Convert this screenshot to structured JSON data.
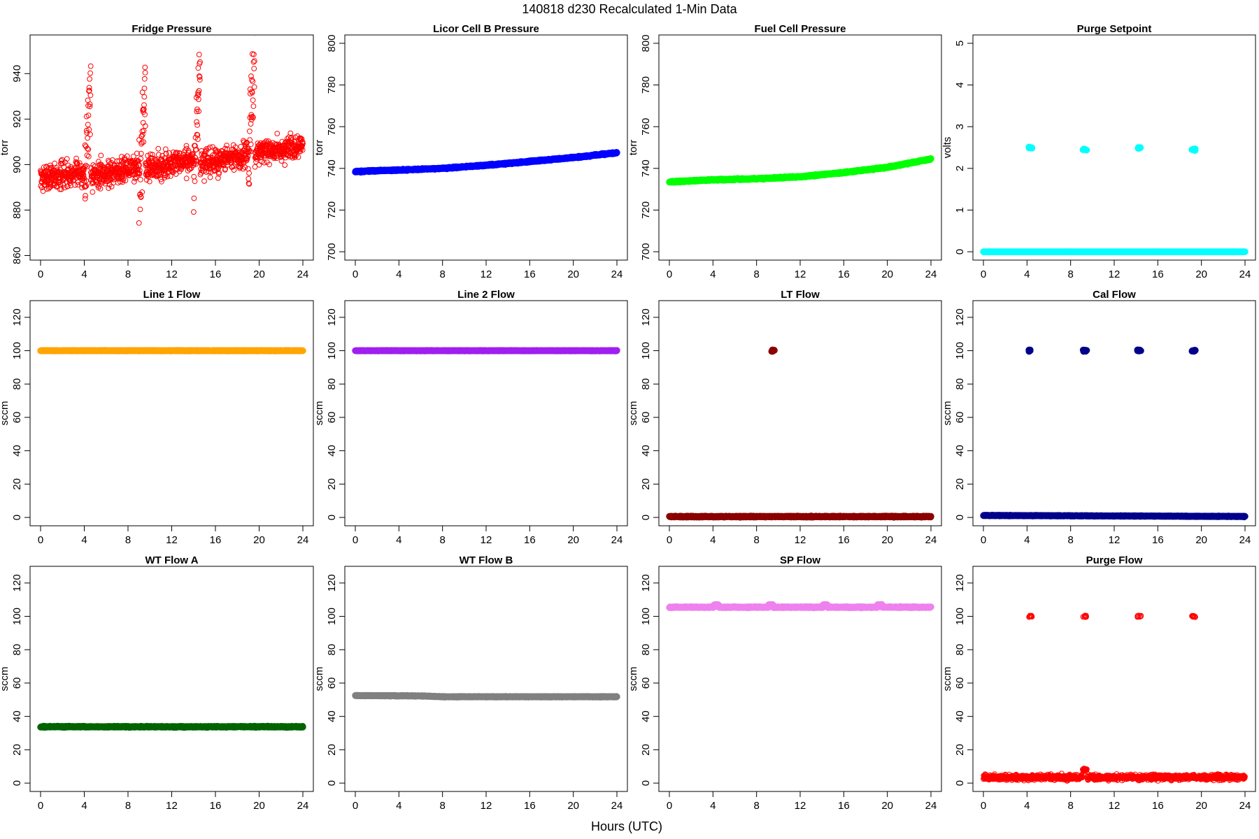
{
  "figure": {
    "title": "140818   d230   Recalculated 1-Min Data",
    "xlabel": "Hours (UTC)"
  },
  "chart_data": [
    {
      "type": "scatter",
      "title": "Fridge Pressure",
      "ylabel": "torr",
      "color": "#ff0000",
      "marker": "open",
      "xlim": [
        0,
        24
      ],
      "xticks": [
        0,
        4,
        8,
        12,
        16,
        20,
        24
      ],
      "ylim": [
        858,
        957
      ],
      "yticks": [
        860,
        880,
        900,
        920,
        940
      ],
      "segments": [
        {
          "x0": 0,
          "x1": 4.0,
          "y0": 894,
          "y1": 897,
          "noise": 7
        },
        {
          "x0": 4.0,
          "x1": 4.6,
          "y0": 885,
          "y1": 945,
          "noise": 28
        },
        {
          "x0": 4.6,
          "x1": 9.0,
          "y0": 895,
          "y1": 899,
          "noise": 7
        },
        {
          "x0": 9.0,
          "x1": 9.6,
          "y0": 880,
          "y1": 945,
          "noise": 28
        },
        {
          "x0": 9.6,
          "x1": 14.0,
          "y0": 898,
          "y1": 902,
          "noise": 7
        },
        {
          "x0": 14.0,
          "x1": 14.6,
          "y0": 890,
          "y1": 945,
          "noise": 22
        },
        {
          "x0": 14.6,
          "x1": 19.0,
          "y0": 900,
          "y1": 904,
          "noise": 7
        },
        {
          "x0": 19.0,
          "x1": 19.6,
          "y0": 895,
          "y1": 950,
          "noise": 24
        },
        {
          "x0": 19.6,
          "x1": 24.0,
          "y0": 905,
          "y1": 908,
          "noise": 6
        }
      ],
      "n": 1440,
      "seed": 7
    },
    {
      "type": "scatter",
      "title": "Licor Cell B Pressure",
      "ylabel": "torr",
      "color": "#0000ff",
      "marker": "filled",
      "xlim": [
        0,
        24
      ],
      "xticks": [
        0,
        4,
        8,
        12,
        16,
        20,
        24
      ],
      "ylim": [
        696,
        804
      ],
      "yticks": [
        700,
        720,
        740,
        760,
        780,
        800
      ],
      "x": [
        0,
        4,
        8,
        12,
        16,
        20,
        24
      ],
      "y": [
        738.5,
        739.2,
        740.0,
        741.5,
        743.3,
        745.2,
        747.5
      ],
      "noise": 0.3,
      "n": 1440,
      "seed": 11
    },
    {
      "type": "scatter",
      "title": "Fuel Cell Pressure",
      "ylabel": "torr",
      "color": "#00ff00",
      "marker": "filled",
      "xlim": [
        0,
        24
      ],
      "xticks": [
        0,
        4,
        8,
        12,
        16,
        20,
        24
      ],
      "ylim": [
        696,
        804
      ],
      "yticks": [
        700,
        720,
        740,
        760,
        780,
        800
      ],
      "x": [
        0,
        4,
        8,
        12,
        16,
        20,
        24
      ],
      "y": [
        733.5,
        734.5,
        735.0,
        736.0,
        738.0,
        740.5,
        744.5
      ],
      "noise": 0.3,
      "n": 1440,
      "seed": 13
    },
    {
      "type": "scatter",
      "title": "Purge Setpoint",
      "ylabel": "volts",
      "color": "#00ffff",
      "marker": "filled",
      "xlim": [
        0,
        24
      ],
      "xticks": [
        0,
        4,
        8,
        12,
        16,
        20,
        24
      ],
      "ylim": [
        -0.2,
        5.2
      ],
      "yticks": [
        0,
        1,
        2,
        3,
        4,
        5
      ],
      "x": [
        0,
        24
      ],
      "y": [
        0,
        0
      ],
      "noise": 0.0,
      "n": 1440,
      "seed": 17,
      "clusters": [
        {
          "x": 4.3,
          "y": 2.5
        },
        {
          "x": 9.3,
          "y": 2.45
        },
        {
          "x": 14.3,
          "y": 2.5
        },
        {
          "x": 19.3,
          "y": 2.45
        }
      ]
    },
    {
      "type": "scatter",
      "title": "Line 1 Flow",
      "ylabel": "sccm",
      "color": "#ffa500",
      "marker": "filled",
      "xlim": [
        0,
        24
      ],
      "xticks": [
        0,
        4,
        8,
        12,
        16,
        20,
        24
      ],
      "ylim": [
        -5,
        130
      ],
      "yticks": [
        0,
        20,
        40,
        60,
        80,
        100,
        120
      ],
      "x": [
        0,
        24
      ],
      "y": [
        100,
        100
      ],
      "noise": 0.15,
      "n": 1440,
      "seed": 19
    },
    {
      "type": "scatter",
      "title": "Line 2 Flow",
      "ylabel": "sccm",
      "color": "#a020f0",
      "marker": "filled",
      "xlim": [
        0,
        24
      ],
      "xticks": [
        0,
        4,
        8,
        12,
        16,
        20,
        24
      ],
      "ylim": [
        -5,
        130
      ],
      "yticks": [
        0,
        20,
        40,
        60,
        80,
        100,
        120
      ],
      "x": [
        0,
        24
      ],
      "y": [
        100,
        100
      ],
      "noise": 0.15,
      "n": 1440,
      "seed": 23
    },
    {
      "type": "scatter",
      "title": "LT Flow",
      "ylabel": "sccm",
      "color": "#8b0000",
      "marker": "filled",
      "xlim": [
        0,
        24
      ],
      "xticks": [
        0,
        4,
        8,
        12,
        16,
        20,
        24
      ],
      "ylim": [
        -5,
        130
      ],
      "yticks": [
        0,
        20,
        40,
        60,
        80,
        100,
        120
      ],
      "x": [
        0,
        24
      ],
      "y": [
        0.5,
        0.5
      ],
      "noise": 0.3,
      "n": 1440,
      "seed": 29,
      "clusters": [
        {
          "x": 9.5,
          "y": 100
        }
      ]
    },
    {
      "type": "scatter",
      "title": "Cal Flow",
      "ylabel": "sccm",
      "color": "#00008b",
      "marker": "filled",
      "xlim": [
        0,
        24
      ],
      "xticks": [
        0,
        4,
        8,
        12,
        16,
        20,
        24
      ],
      "ylim": [
        -5,
        130
      ],
      "yticks": [
        0,
        20,
        40,
        60,
        80,
        100,
        120
      ],
      "x": [
        0,
        24
      ],
      "y": [
        1.2,
        0.6
      ],
      "noise": 0.2,
      "n": 1440,
      "seed": 31,
      "clusters": [
        {
          "x": 4.3,
          "y": 100
        },
        {
          "x": 9.3,
          "y": 100
        },
        {
          "x": 14.3,
          "y": 100
        },
        {
          "x": 19.3,
          "y": 100
        }
      ]
    },
    {
      "type": "scatter",
      "title": "WT Flow A",
      "ylabel": "sccm",
      "color": "#006400",
      "marker": "filled",
      "xlim": [
        0,
        24
      ],
      "xticks": [
        0,
        4,
        8,
        12,
        16,
        20,
        24
      ],
      "ylim": [
        -5,
        130
      ],
      "yticks": [
        0,
        20,
        40,
        60,
        80,
        100,
        120
      ],
      "x": [
        0,
        24
      ],
      "y": [
        33.8,
        33.8
      ],
      "noise": 0.3,
      "n": 1440,
      "seed": 37
    },
    {
      "type": "scatter",
      "title": "WT Flow B",
      "ylabel": "sccm",
      "color": "#808080",
      "marker": "filled",
      "xlim": [
        0,
        24
      ],
      "xticks": [
        0,
        4,
        8,
        12,
        16,
        20,
        24
      ],
      "ylim": [
        -5,
        130
      ],
      "yticks": [
        0,
        20,
        40,
        60,
        80,
        100,
        120
      ],
      "x": [
        0,
        6,
        8,
        24
      ],
      "y": [
        52.5,
        52.3,
        51.8,
        51.8
      ],
      "noise": 0.2,
      "n": 1440,
      "seed": 41
    },
    {
      "type": "scatter",
      "title": "SP Flow",
      "ylabel": "sccm",
      "color": "#ee82ee",
      "marker": "filled",
      "xlim": [
        0,
        24
      ],
      "xticks": [
        0,
        4,
        8,
        12,
        16,
        20,
        24
      ],
      "ylim": [
        -5,
        130
      ],
      "yticks": [
        0,
        20,
        40,
        60,
        80,
        100,
        120
      ],
      "x": [
        0,
        24
      ],
      "y": [
        105.5,
        105.5
      ],
      "noise": 0.3,
      "n": 1440,
      "seed": 43,
      "bumps": [
        {
          "x": 4.3,
          "y": 107
        },
        {
          "x": 9.3,
          "y": 107
        },
        {
          "x": 14.3,
          "y": 107
        },
        {
          "x": 19.3,
          "y": 107
        }
      ]
    },
    {
      "type": "scatter",
      "title": "Purge Flow",
      "ylabel": "sccm",
      "color": "#ff0000",
      "marker": "open",
      "xlim": [
        0,
        24
      ],
      "xticks": [
        0,
        4,
        8,
        12,
        16,
        20,
        24
      ],
      "ylim": [
        -5,
        130
      ],
      "yticks": [
        0,
        20,
        40,
        60,
        80,
        100,
        120
      ],
      "x": [
        0,
        24
      ],
      "y": [
        3.5,
        3.5
      ],
      "noise": 1.5,
      "n": 1440,
      "seed": 47,
      "clusters": [
        {
          "x": 4.3,
          "y": 100
        },
        {
          "x": 9.3,
          "y": 100
        },
        {
          "x": 14.3,
          "y": 100
        },
        {
          "x": 19.3,
          "y": 100
        }
      ],
      "bumps": [
        {
          "x": 9.3,
          "y": 8
        }
      ]
    }
  ]
}
